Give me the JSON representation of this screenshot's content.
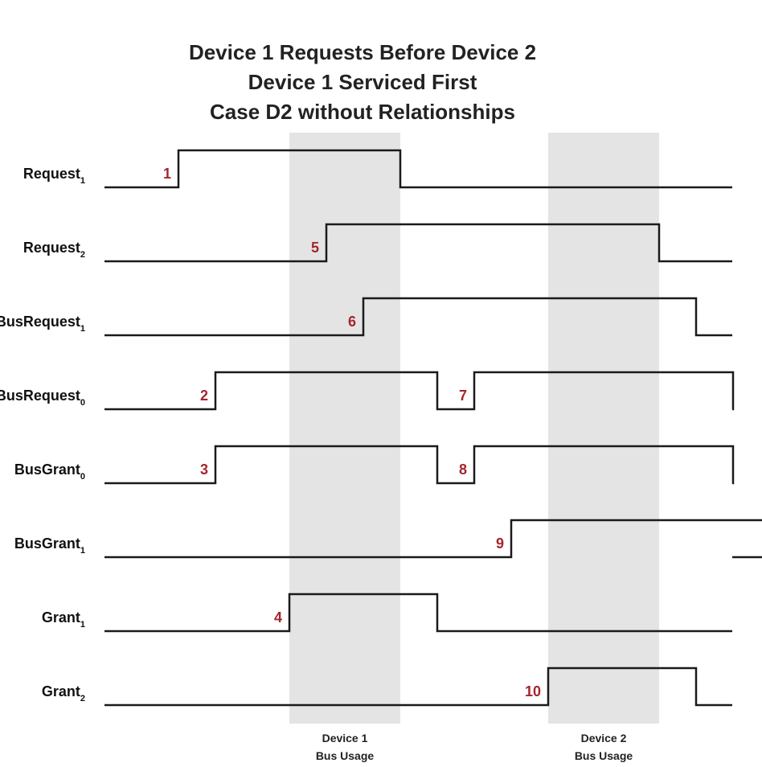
{
  "title_lines": [
    "Device 1 Requests Before Device 2",
    "Device 1 Serviced First",
    "Case D2 without Relationships"
  ],
  "colors": {
    "wave": "#1a1a1a",
    "marker": "#a3262e",
    "band": "#e4e4e4"
  },
  "bands": [
    {
      "label_line1": "Device 1",
      "label_line2": "Bus Usage",
      "start_t": 4,
      "end_t": 7
    },
    {
      "label_line1": "Device 2",
      "label_line2": "Bus Usage",
      "start_t": 11,
      "end_t": 14
    }
  ],
  "signals": [
    {
      "name": "Request",
      "sub": "1",
      "high": [
        [
          1,
          7
        ]
      ],
      "markers": [
        {
          "text": "1",
          "t": 1
        }
      ]
    },
    {
      "name": "Request",
      "sub": "2",
      "high": [
        [
          5,
          14
        ]
      ],
      "markers": [
        {
          "text": "5",
          "t": 5
        }
      ]
    },
    {
      "name": "BusRequest",
      "sub": "1",
      "high": [
        [
          6,
          15
        ]
      ],
      "markers": [
        {
          "text": "6",
          "t": 6
        }
      ]
    },
    {
      "name": "BusRequest",
      "sub": "0",
      "high": [
        [
          2,
          8
        ],
        [
          9,
          16
        ]
      ],
      "markers": [
        {
          "text": "2",
          "t": 2
        },
        {
          "text": "7",
          "t": 9
        }
      ]
    },
    {
      "name": "BusGrant",
      "sub": "0",
      "high": [
        [
          2,
          8
        ],
        [
          9,
          16
        ]
      ],
      "markers": [
        {
          "text": "3",
          "t": 2
        },
        {
          "text": "8",
          "t": 9
        }
      ]
    },
    {
      "name": "BusGrant",
      "sub": "1",
      "high": [
        [
          10,
          17
        ]
      ],
      "markers": [
        {
          "text": "9",
          "t": 10
        }
      ]
    },
    {
      "name": "Grant",
      "sub": "1",
      "high": [
        [
          4,
          8
        ]
      ],
      "markers": [
        {
          "text": "4",
          "t": 4
        }
      ]
    },
    {
      "name": "Grant",
      "sub": "2",
      "high": [
        [
          11,
          15
        ]
      ],
      "markers": [
        {
          "text": "10",
          "t": 11
        }
      ]
    }
  ]
}
